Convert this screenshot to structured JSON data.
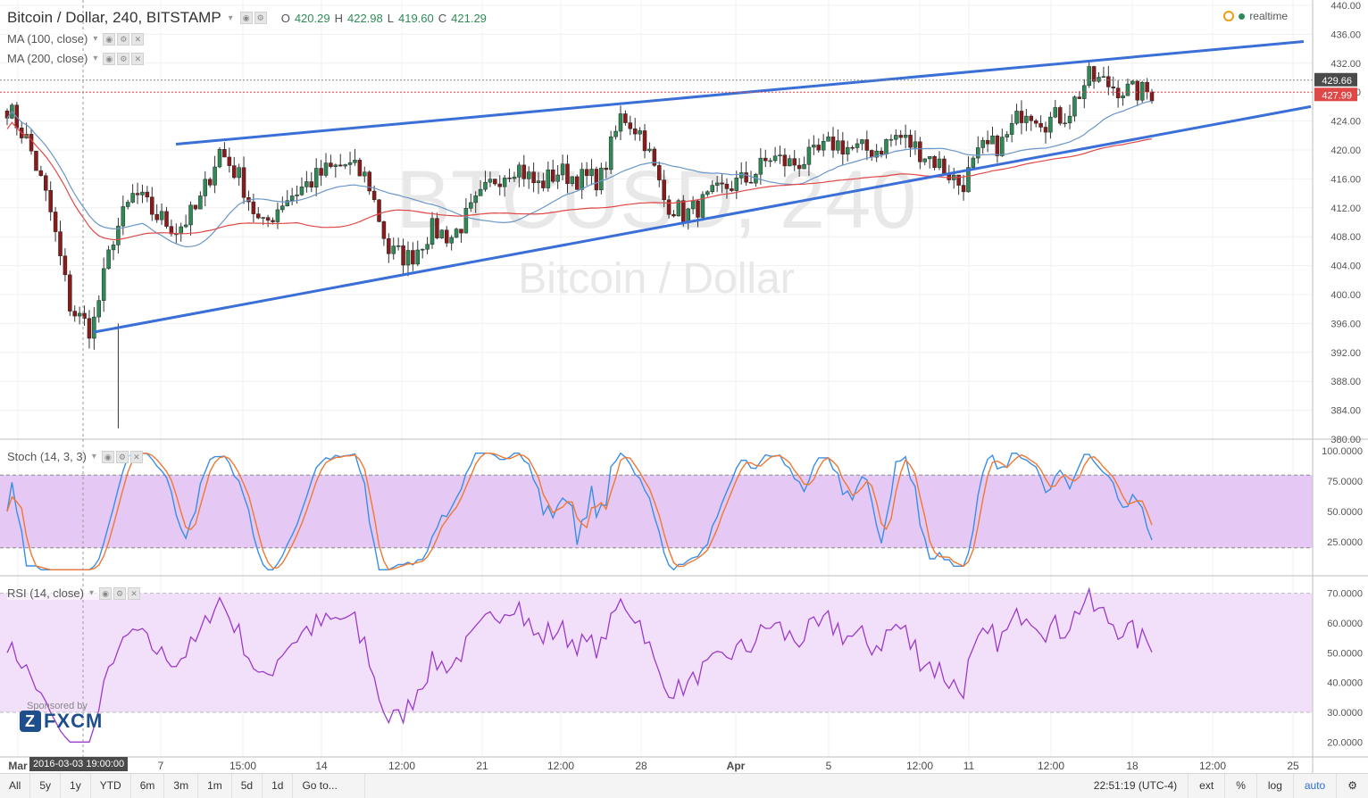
{
  "header": {
    "title": "Bitcoin / Dollar, 240, BITSTAMP",
    "open_label": "O",
    "open": "420.29",
    "high_label": "H",
    "high": "422.98",
    "low_label": "L",
    "low": "419.60",
    "close_label": "C",
    "close": "421.29",
    "realtime": "realtime"
  },
  "studies": {
    "ma100": "MA (100, close)",
    "ma200": "MA (200, close)",
    "stoch": "Stoch (14, 3, 3)",
    "rsi": "RSI (14, close)"
  },
  "watermark": {
    "symbol": "BTCUSD, 240",
    "name": "Bitcoin / Dollar"
  },
  "sponsor": {
    "label": "Sponsored by",
    "brand": "FXCM"
  },
  "price_axis": {
    "ticks": [
      "440.00",
      "436.00",
      "432.00",
      "428.00",
      "424.00",
      "420.00",
      "416.00",
      "412.00",
      "408.00",
      "404.00",
      "400.00",
      "396.00",
      "392.00",
      "388.00",
      "384.00",
      "380.00"
    ],
    "tick_values": [
      440,
      436,
      432,
      428,
      424,
      420,
      416,
      412,
      408,
      404,
      400,
      396,
      392,
      388,
      384,
      380
    ],
    "current_price_label": "429.66",
    "last_price_label": "427.99",
    "current_price": 429.66,
    "last_price": 427.99
  },
  "stoch_axis": {
    "ticks": [
      "100.0000",
      "75.0000",
      "50.0000",
      "25.0000"
    ],
    "values": [
      100,
      75,
      50,
      25
    ]
  },
  "rsi_axis": {
    "ticks": [
      "70.0000",
      "60.0000",
      "50.0000",
      "40.0000",
      "30.0000",
      "20.0000"
    ],
    "values": [
      70,
      60,
      50,
      40,
      30,
      20
    ]
  },
  "time_axis": {
    "labels": [
      "Mar",
      "7",
      "15:00",
      "14",
      "12:00",
      "21",
      "12:00",
      "28",
      "Apr",
      "5",
      "12:00",
      "11",
      "12:00",
      "18",
      "12:00",
      "25"
    ],
    "crosshair_time": "2016-03-03 19:00:00"
  },
  "toolbar": {
    "ranges": [
      "All",
      "5y",
      "1y",
      "YTD",
      "6m",
      "3m",
      "1m",
      "5d",
      "1d",
      "Go to..."
    ],
    "clock": "22:51:19 (UTC-4)",
    "ext": "ext",
    "percent": "%",
    "log": "log",
    "auto": "auto"
  },
  "colors": {
    "up": "#2e8b57",
    "down": "#8b1a1a",
    "trendline": "#3a6fd8",
    "ma100": "#6a96c8",
    "ma200": "#e04848",
    "stoch_k": "#3a8ee6",
    "stoch_d": "#f07832",
    "stoch_band": "#e6c8f5",
    "rsi_line": "#9b3bc8",
    "rsi_band": "#f2e0fb",
    "last_price_bg": "#e04848",
    "current_price_bg": "#4a4a4a"
  },
  "chart_data": {
    "type": "candlestick",
    "symbol": "Bitcoin / Dollar",
    "interval": "240",
    "exchange": "BITSTAMP",
    "y_range": [
      380,
      440
    ],
    "series_anchor_close": [
      426,
      421,
      412,
      398,
      395,
      408,
      414,
      411,
      409,
      412,
      420,
      416,
      409,
      413,
      415,
      417,
      418,
      416,
      406,
      405,
      409,
      408,
      412,
      416,
      418,
      415,
      417,
      416,
      416,
      425,
      422,
      413,
      411,
      413,
      415,
      416,
      419,
      418,
      419,
      421,
      420,
      420,
      422,
      420,
      418,
      415,
      420,
      421,
      426,
      424,
      425,
      430,
      429,
      428,
      428
    ],
    "trendlines": [
      {
        "name": "upper",
        "from": [
          "2016-03-07",
          420.8
        ],
        "to": [
          "2016-04-25",
          435.0
        ]
      },
      {
        "name": "lower",
        "from": [
          "2016-03-03",
          394.8
        ],
        "to": [
          "2016-04-25",
          426.0
        ]
      }
    ],
    "ma100_end": 422.5,
    "ma200_end": 419.0
  }
}
